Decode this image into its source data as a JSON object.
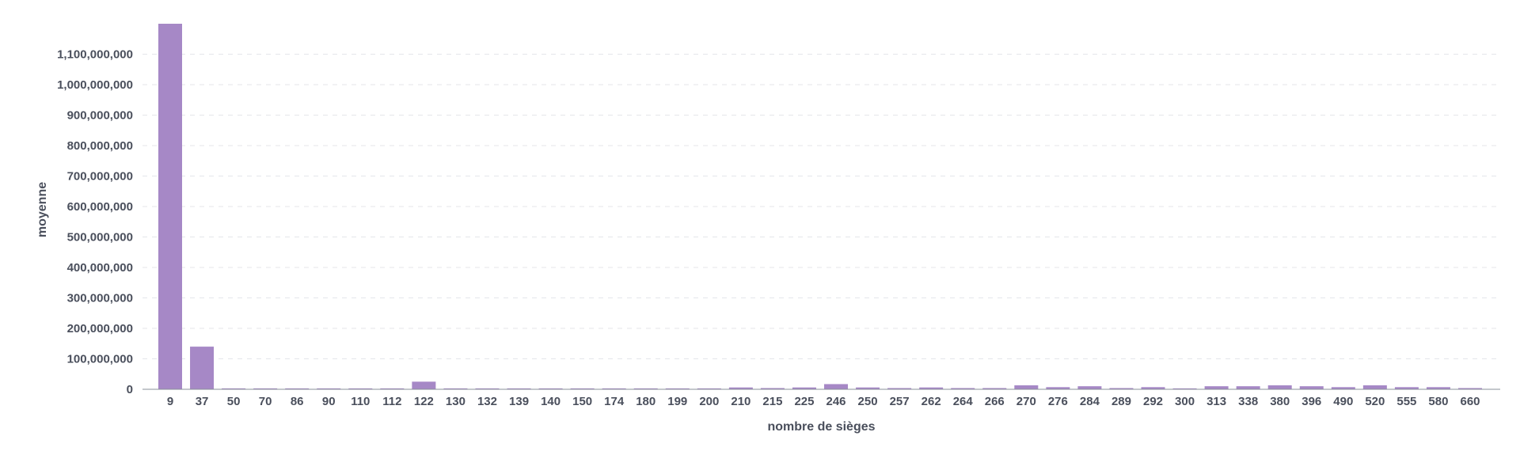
{
  "chart_data": {
    "type": "bar",
    "xlabel": "nombre de sièges",
    "ylabel": "moyenne",
    "ylim": [
      0,
      1200000000
    ],
    "yticks": [
      0,
      100000000,
      200000000,
      300000000,
      400000000,
      500000000,
      600000000,
      700000000,
      800000000,
      900000000,
      1000000000,
      1100000000
    ],
    "ytick_labels": [
      "0",
      "100,000,000",
      "200,000,000",
      "300,000,000",
      "400,000,000",
      "500,000,000",
      "600,000,000",
      "700,000,000",
      "800,000,000",
      "900,000,000",
      "1,000,000,000",
      "1,100,000,000"
    ],
    "grid": true,
    "bar_color": "#a688c6",
    "categories": [
      "9",
      "37",
      "50",
      "70",
      "86",
      "90",
      "110",
      "112",
      "122",
      "130",
      "132",
      "139",
      "140",
      "150",
      "174",
      "180",
      "199",
      "200",
      "210",
      "215",
      "225",
      "246",
      "250",
      "257",
      "262",
      "264",
      "266",
      "270",
      "276",
      "284",
      "289",
      "292",
      "300",
      "313",
      "338",
      "380",
      "396",
      "490",
      "520",
      "555",
      "580",
      "660"
    ],
    "values": [
      1200000000,
      140000000,
      3000000,
      3000000,
      3000000,
      3000000,
      3000000,
      3000000,
      25000000,
      3000000,
      3000000,
      3000000,
      3000000,
      3000000,
      3000000,
      3000000,
      3000000,
      3000000,
      6000000,
      4000000,
      6000000,
      17000000,
      6000000,
      4000000,
      6000000,
      4000000,
      4000000,
      13000000,
      7000000,
      10000000,
      4000000,
      7000000,
      3000000,
      10000000,
      10000000,
      13000000,
      10000000,
      7000000,
      13000000,
      7000000,
      7000000,
      4000000
    ]
  }
}
